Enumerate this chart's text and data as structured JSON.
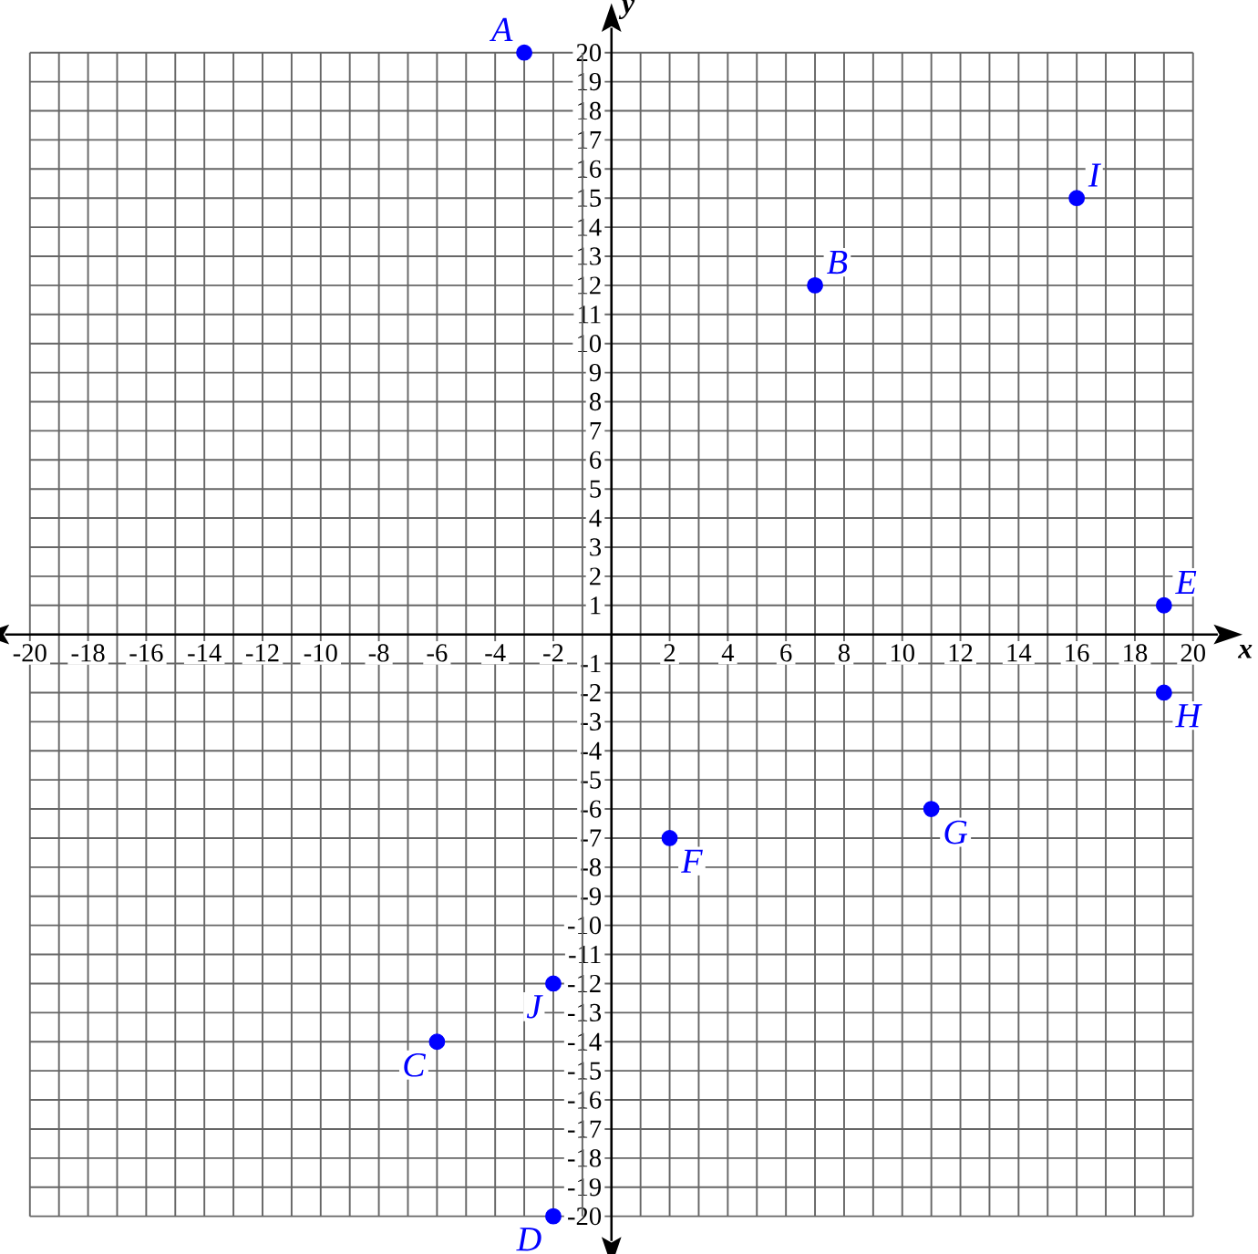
{
  "chart_data": {
    "type": "scatter",
    "xlabel": "x",
    "ylabel": "y",
    "x": [
      -3,
      7,
      -6,
      -2,
      19,
      2,
      11,
      19,
      16,
      -2
    ],
    "values": [
      20,
      12,
      -14,
      -20,
      1,
      -7,
      -6,
      -2,
      15,
      -12
    ],
    "color": "#0000ff",
    "marker": "circle",
    "grid": true,
    "xlim": [
      -20,
      20
    ],
    "ylim": [
      -20,
      20
    ],
    "xticks": [
      -20,
      {
        "value": -19,
        "label": null
      },
      -18,
      {
        "value": -17,
        "label": null
      },
      -16,
      {
        "value": -15,
        "label": null
      },
      -14,
      {
        "value": -13,
        "label": null
      },
      -12,
      {
        "value": -11,
        "label": null
      },
      -10,
      {
        "value": -9,
        "label": null
      },
      -8,
      {
        "value": -7,
        "label": null
      },
      -6,
      {
        "value": -5,
        "label": null
      },
      -4,
      {
        "value": -3,
        "label": null
      },
      -2,
      {
        "value": -1,
        "label": null
      },
      {
        "value": 0,
        "label": null
      },
      {
        "value": 1,
        "label": null
      },
      2,
      {
        "value": 3,
        "label": null
      },
      4,
      {
        "value": 5,
        "label": null
      },
      6,
      {
        "value": 7,
        "label": null
      },
      8,
      {
        "value": 9,
        "label": null
      },
      10,
      {
        "value": 11,
        "label": null
      },
      12,
      {
        "value": 13,
        "label": null
      },
      14,
      {
        "value": 15,
        "label": null
      },
      16,
      {
        "value": 17,
        "label": null
      },
      18,
      {
        "value": 19,
        "label": null
      },
      20
    ],
    "yticks": [
      -20,
      -19,
      -18,
      -17,
      -16,
      -15,
      -14,
      -13,
      -12,
      -11,
      -10,
      -9,
      -8,
      -7,
      -6,
      -5,
      -4,
      -3,
      -2,
      -1,
      {
        "value": 0,
        "label": null
      },
      1,
      2,
      3,
      4,
      5,
      6,
      7,
      8,
      9,
      10,
      11,
      12,
      13,
      14,
      15,
      16,
      17,
      18,
      19,
      20
    ],
    "annotations": [
      {
        "text": "A",
        "x": -3,
        "y": 20
      },
      {
        "text": "B",
        "x": 7,
        "y": 12
      },
      {
        "text": "C",
        "x": -6,
        "y": -14
      },
      {
        "text": "D",
        "x": -2,
        "y": -20
      },
      {
        "text": "E",
        "x": 19,
        "y": 1
      },
      {
        "text": "F",
        "x": 2,
        "y": -7
      },
      {
        "text": "G",
        "x": 11,
        "y": -6
      },
      {
        "text": "H",
        "x": 19,
        "y": -2
      },
      {
        "text": "I",
        "x": 16,
        "y": 15
      },
      {
        "text": "J",
        "x": -2,
        "y": -12
      }
    ]
  }
}
